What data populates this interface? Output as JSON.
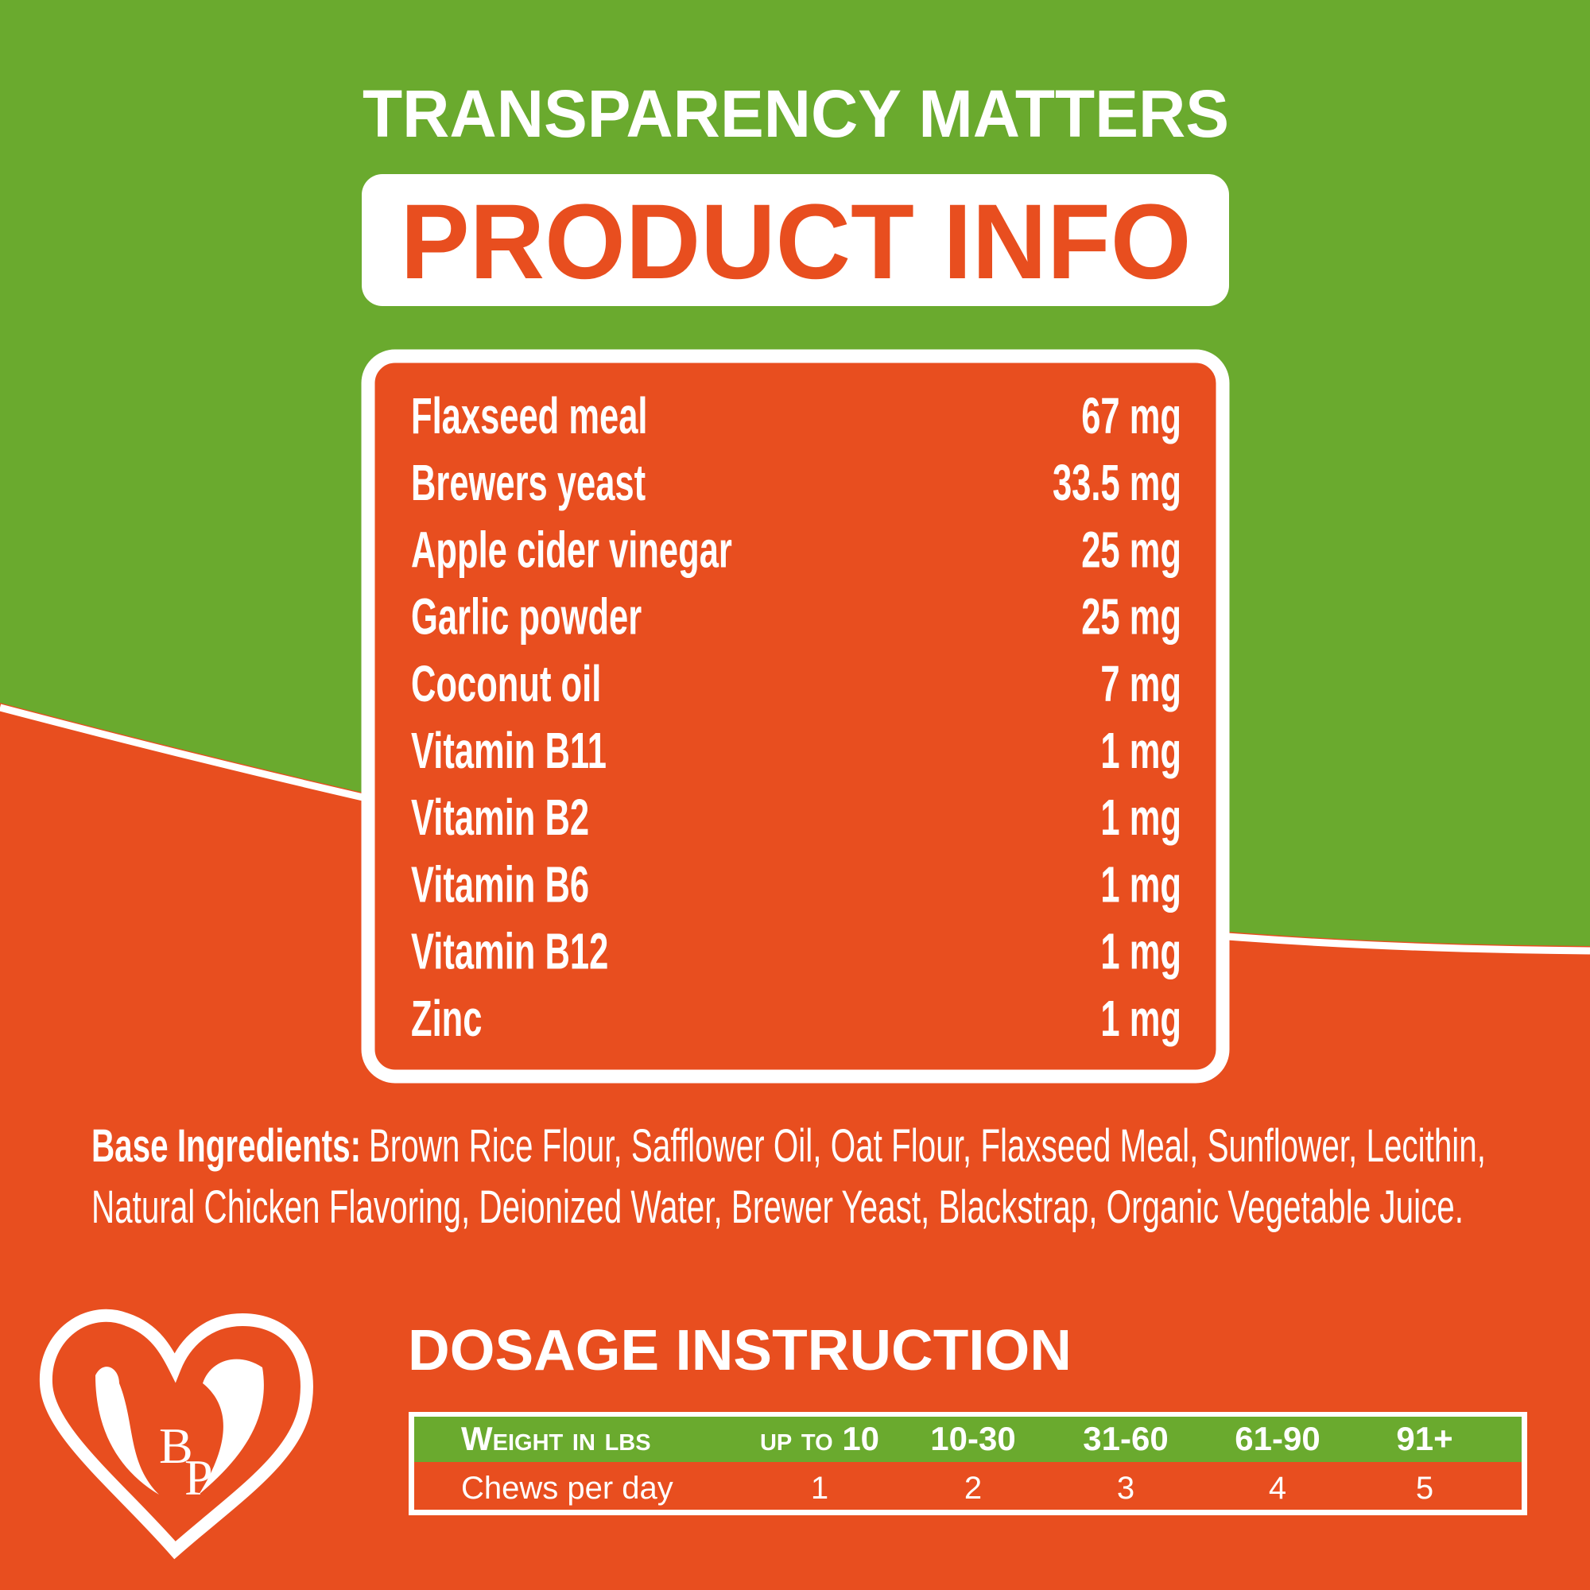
{
  "header": {
    "kicker": "TRANSPARENCY MATTERS",
    "title": "PRODUCT INFO"
  },
  "ingredients": {
    "rows": [
      [
        "Flaxseed meal",
        "67 mg"
      ],
      [
        "Brewers yeast",
        "33.5 mg"
      ],
      [
        "Apple cider vinegar",
        "25 mg"
      ],
      [
        "Garlic powder",
        "25 mg"
      ],
      [
        "Coconut oil",
        "7 mg"
      ],
      [
        "Vitamin B11",
        "1 mg"
      ],
      [
        "Vitamin B2",
        "1 mg"
      ],
      [
        "Vitamin B6",
        "1 mg"
      ],
      [
        "Vitamin B12",
        "1 mg"
      ],
      [
        "Zinc",
        "1 mg"
      ]
    ]
  },
  "base_ingredients": {
    "label": "Base Ingredients:",
    "lines": [
      "Brown Rice Flour, Safflower Oil, Oat Flour, Flaxseed Meal, Sunflower, Lecithin,",
      "Natural Chicken Flavoring, Deionized Water, Brewer Yeast, Blackstrap, Organic Vegetable Juice."
    ]
  },
  "dosage": {
    "title": "DOSAGE INSTRUCTION",
    "table": {
      "header": [
        "Weight in lbs",
        "up to 10",
        "10-30",
        "31-60",
        "61-90",
        "91+"
      ],
      "rows": [
        [
          "Chews per day",
          "1",
          "2",
          "3",
          "4",
          "5"
        ]
      ]
    }
  },
  "logo": {
    "letters": [
      "B",
      "P"
    ]
  }
}
